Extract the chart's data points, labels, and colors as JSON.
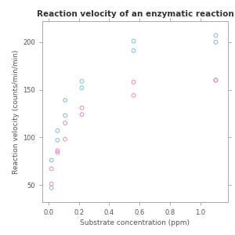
{
  "title": "Reaction velocity of an enzymatic reaction",
  "xlabel": "Substrate concentration (ppm)",
  "ylabel": "Reaction velocity (counts/min/min)",
  "xlim": [
    -0.04,
    1.18
  ],
  "ylim": [
    32,
    222
  ],
  "xticks": [
    0.0,
    0.2,
    0.4,
    0.6,
    0.8,
    1.0
  ],
  "yticks": [
    50,
    100,
    150,
    200
  ],
  "treated_x": [
    0.02,
    0.02,
    0.06,
    0.06,
    0.11,
    0.11,
    0.22,
    0.22,
    0.56,
    0.56,
    1.1,
    1.1
  ],
  "treated_y": [
    76,
    47,
    97,
    107,
    123,
    139,
    159,
    152,
    191,
    201,
    207,
    200
  ],
  "untreated_x": [
    0.02,
    0.02,
    0.06,
    0.06,
    0.11,
    0.11,
    0.22,
    0.22,
    0.56,
    0.56,
    1.1,
    1.1
  ],
  "untreated_y": [
    67,
    51,
    84,
    86,
    98,
    115,
    131,
    124,
    144,
    158,
    160,
    160
  ],
  "treated_color": "#7bbfdb",
  "untreated_color": "#e888c0",
  "marker_size": 12,
  "bg_color": "#ffffff",
  "plot_bg_color": "#ffffff",
  "title_fontsize": 7.5,
  "label_fontsize": 6.5,
  "tick_fontsize": 6,
  "spine_color": "#aaaaaa",
  "tick_color": "#555555"
}
